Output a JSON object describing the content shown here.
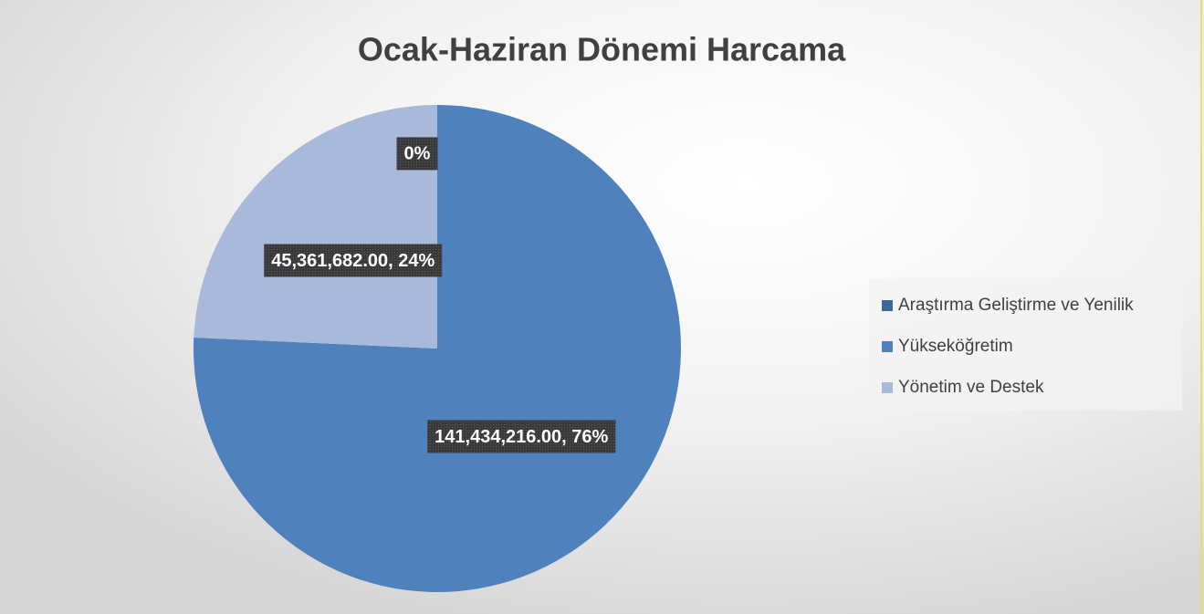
{
  "chart_data": {
    "type": "pie",
    "title": "Ocak-Haziran Dönemi Harcama",
    "categories": [
      "Araştırma Geliştirme ve Yenilik",
      "Yükseköğretim",
      "Yönetim ve Destek"
    ],
    "values": [
      0,
      141434216,
      45361682
    ],
    "value_labels": [
      "0%",
      "141,434,216.00, 76%",
      "45,361,682.00, 24%"
    ],
    "colors": [
      "#3f6699",
      "#4f81bd",
      "#a9b9d9"
    ],
    "legend": "right"
  }
}
